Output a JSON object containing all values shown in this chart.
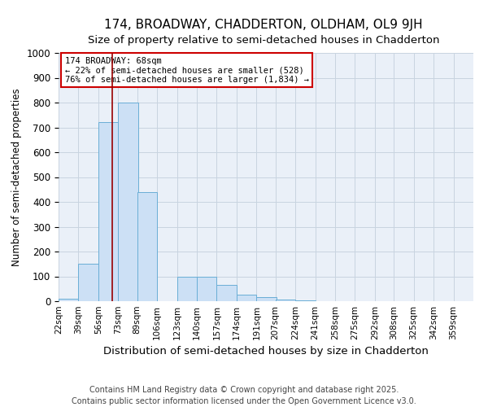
{
  "title": "174, BROADWAY, CHADDERTON, OLDHAM, OL9 9JH",
  "subtitle": "Size of property relative to semi-detached houses in Chadderton",
  "xlabel": "Distribution of semi-detached houses by size in Chadderton",
  "ylabel": "Number of semi-detached properties",
  "footer": "Contains HM Land Registry data © Crown copyright and database right 2025.\nContains public sector information licensed under the Open Government Licence v3.0.",
  "bin_labels": [
    "22sqm",
    "39sqm",
    "56sqm",
    "73sqm",
    "89sqm",
    "106sqm",
    "123sqm",
    "140sqm",
    "157sqm",
    "174sqm",
    "191sqm",
    "207sqm",
    "224sqm",
    "241sqm",
    "258sqm",
    "275sqm",
    "292sqm",
    "308sqm",
    "325sqm",
    "342sqm",
    "359sqm"
  ],
  "bin_edges": [
    22,
    39,
    56,
    73,
    89,
    106,
    123,
    140,
    157,
    174,
    191,
    207,
    224,
    241,
    258,
    275,
    292,
    308,
    325,
    342,
    359
  ],
  "bar_heights": [
    10,
    150,
    720,
    800,
    440,
    0,
    100,
    100,
    65,
    25,
    15,
    5,
    2,
    1,
    1,
    0,
    0,
    0,
    0,
    0
  ],
  "bar_color": "#cce0f5",
  "bar_edgecolor": "#6aaed6",
  "property_line_x": 68,
  "annotation_text": "174 BROADWAY: 68sqm\n← 22% of semi-detached houses are smaller (528)\n76% of semi-detached houses are larger (1,834) →",
  "annotation_box_color": "#ffffff",
  "annotation_box_edgecolor": "#cc0000",
  "ylim": [
    0,
    1000
  ],
  "yticks": [
    0,
    100,
    200,
    300,
    400,
    500,
    600,
    700,
    800,
    900,
    1000
  ],
  "grid_color": "#c8d4e0",
  "background_color": "#eaf0f8",
  "vline_color": "#990000",
  "title_fontsize": 11,
  "subtitle_fontsize": 9.5,
  "ylabel_fontsize": 8.5,
  "xlabel_fontsize": 9.5,
  "footer_fontsize": 7,
  "annotation_fontsize": 7.5
}
